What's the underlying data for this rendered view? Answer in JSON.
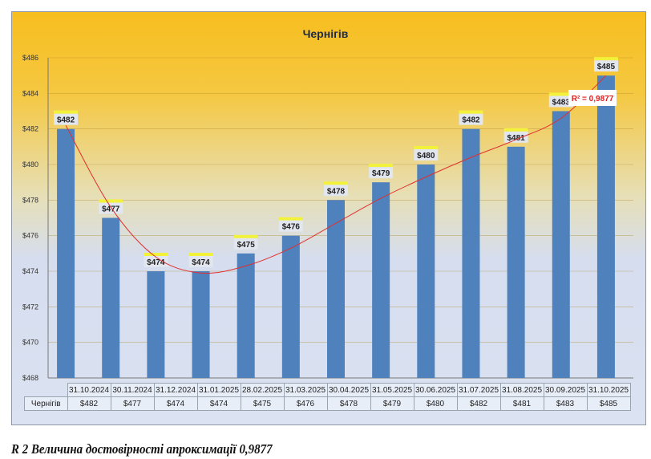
{
  "chart_data": {
    "type": "bar",
    "title": "Чернігів",
    "categories": [
      "31.10.2024",
      "30.11.2024",
      "31.12.2024",
      "31.01.2025",
      "28.02.2025",
      "31.03.2025",
      "30.04.2025",
      "31.05.2025",
      "30.06.2025",
      "31.07.2025",
      "31.08.2025",
      "30.09.2025",
      "31.10.2025"
    ],
    "series": [
      {
        "name": "Чернігів",
        "values": [
          482,
          477,
          474,
          474,
          475,
          476,
          478,
          479,
          480,
          482,
          481,
          483,
          485
        ],
        "labels": [
          "$482",
          "$477",
          "$474",
          "$474",
          "$475",
          "$476",
          "$478",
          "$479",
          "$480",
          "$482",
          "$481",
          "$483",
          "$485"
        ]
      }
    ],
    "trendline": {
      "type": "polynomial",
      "r2_label": "R² = 0,9877"
    },
    "ylim": [
      468,
      486
    ],
    "yticks": [
      "$468",
      "$470",
      "$472",
      "$474",
      "$476",
      "$478",
      "$480",
      "$482",
      "$484",
      "$486"
    ],
    "grid": true,
    "bar_color": "#4f81bd",
    "trend_color": "#e03030"
  },
  "caption": "R 2 Величина достовірності апроксимації 0,9877"
}
